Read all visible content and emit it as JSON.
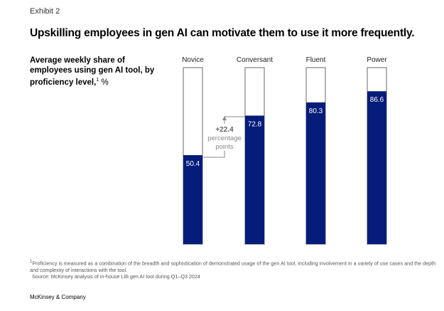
{
  "exhibit_label": "Exhibit 2",
  "chart_data": {
    "type": "bar",
    "title": "Upskilling employees in gen AI can motivate them to use it more frequently.",
    "subtitle": "Average weekly share of employees using gen AI tool, by proficiency level,",
    "subtitle_footnote_mark": "1",
    "subtitle_unit": "%",
    "categories": [
      "Novice",
      "Conversant",
      "Fluent",
      "Power"
    ],
    "values": [
      50.4,
      72.8,
      80.3,
      86.6
    ],
    "value_labels": [
      "50.4",
      "72.8",
      "80.3",
      "86.6"
    ],
    "ylim": [
      0,
      100
    ],
    "grid": false,
    "annotation": {
      "value": "+22.4",
      "line1": "percentage",
      "line2": "points"
    },
    "colors": {
      "bar_fill": "#051c7a",
      "bar_outline": "#9a9a9a",
      "annotation": "#888888"
    }
  },
  "footnote": "Proficiency is measured as a combination of the breadth and sophistication of demonstrated usage of the gen AI tool, including involvement in a variety of use cases and the depth and complexity of interactions with the tool.",
  "footnote_mark": "1",
  "source": "Source: McKinsey analysis of in-house Lilli gen AI tool during Q1–Q3 2024",
  "brand": "McKinsey & Company"
}
